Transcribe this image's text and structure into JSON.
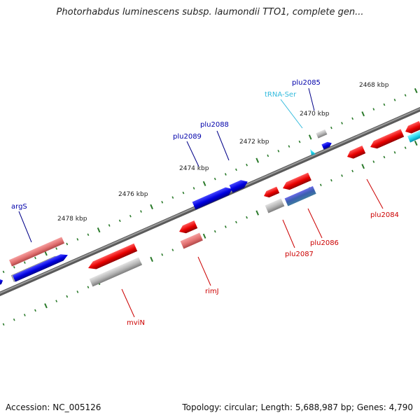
{
  "title": "Photorhabdus luminescens subsp. laumondii TTO1, complete gen...",
  "footer": {
    "accession": "Accession: NC_005126",
    "topology": "Topology: circular; Length: 5,688,987 bp; Genes: 4,790"
  },
  "scale_labels": [
    "2468 kbp",
    "2470 kbp",
    "2472 kbp",
    "2474 kbp",
    "2476 kbp",
    "2478 kbp"
  ],
  "gene_labels": {
    "forward": [
      "plu2085",
      "plu2088",
      "plu2089",
      "argS"
    ],
    "rna": [
      "tRNA-Ser"
    ],
    "reverse": [
      "plu2084",
      "plu2086",
      "plu2087",
      "rimJ",
      "mviN"
    ]
  },
  "colors": {
    "backbone": "#777777",
    "forward_gene": "#0000ee",
    "reverse_gene": "#ee0000",
    "reverse_gene_light": "#e87878",
    "rna": "#22ccee",
    "other_feature": "#aaaaaa",
    "tick": "#2a7a2a",
    "forward_label": "#0000aa",
    "reverse_label": "#cc0000",
    "rna_label": "#33bbdd"
  }
}
